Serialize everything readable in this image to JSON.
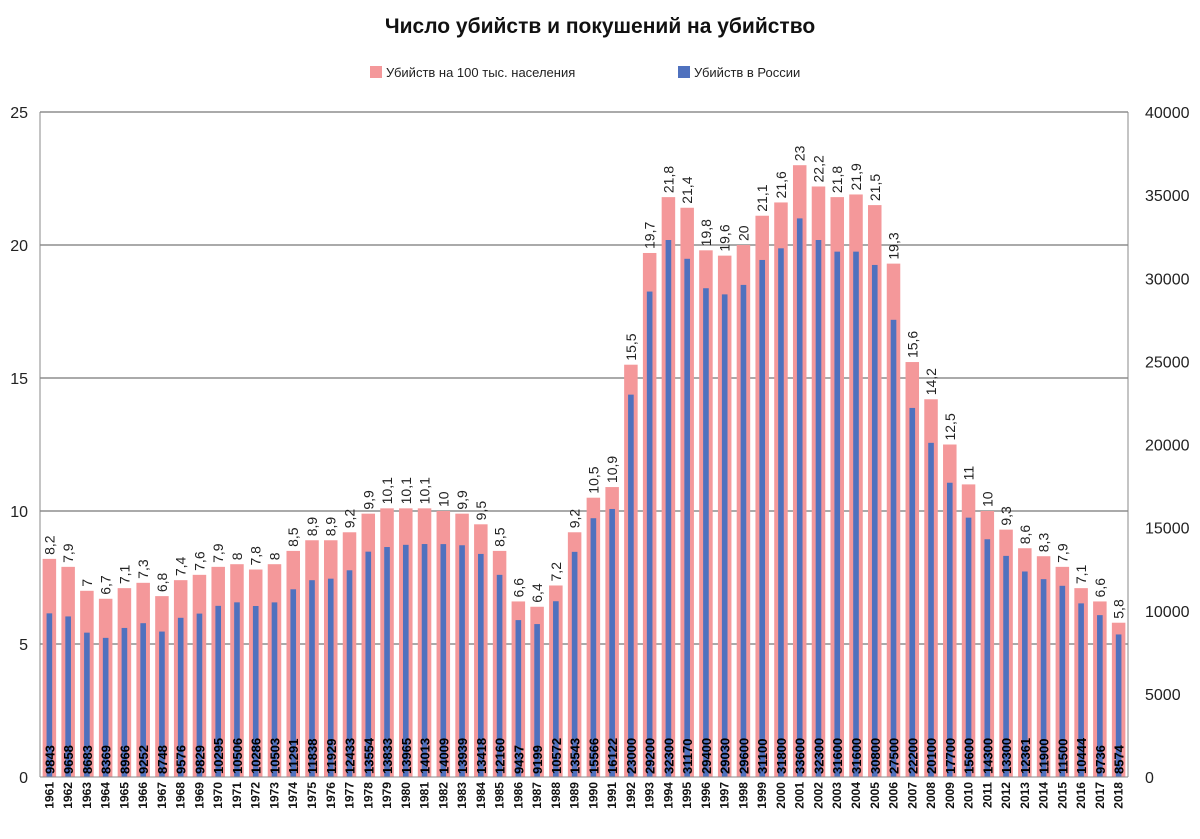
{
  "chart_data": {
    "type": "bar",
    "title": "Число убийств и покушений на убийство",
    "legend": [
      {
        "name": "Убийств на 100 тыс. населения",
        "color": "#f4989a"
      },
      {
        "name": "Убийств в России",
        "color": "#4f71be"
      }
    ],
    "categories": [
      "1961",
      "1962",
      "1963",
      "1964",
      "1965",
      "1966",
      "1967",
      "1968",
      "1969",
      "1970",
      "1971",
      "1972",
      "1973",
      "1974",
      "1975",
      "1976",
      "1977",
      "1978",
      "1979",
      "1980",
      "1981",
      "1982",
      "1983",
      "1984",
      "1985",
      "1986",
      "1987",
      "1988",
      "1989",
      "1990",
      "1991",
      "1992",
      "1993",
      "1994",
      "1995",
      "1996",
      "1997",
      "1998",
      "1999",
      "2000",
      "2001",
      "2002",
      "2003",
      "2004",
      "2005",
      "2006",
      "2007",
      "2008",
      "2009",
      "2010",
      "2011",
      "2012",
      "2013",
      "2014",
      "2015",
      "2016",
      "2017",
      "2018"
    ],
    "series": [
      {
        "name": "Убийств на 100 тыс. населения",
        "axis": "left",
        "values": [
          8.2,
          7.9,
          7,
          6.7,
          7.1,
          7.3,
          6.8,
          7.4,
          7.6,
          7.9,
          8,
          7.8,
          8,
          8.5,
          8.9,
          8.9,
          9.2,
          9.9,
          10.1,
          10.1,
          10.1,
          10,
          9.9,
          9.5,
          8.5,
          6.6,
          6.4,
          7.2,
          9.2,
          10.5,
          10.9,
          15.5,
          19.7,
          21.8,
          21.4,
          19.8,
          19.6,
          20,
          21.1,
          21.6,
          23,
          22.2,
          21.8,
          21.9,
          21.5,
          19.3,
          15.6,
          14.2,
          12.5,
          11,
          10,
          9.3,
          8.6,
          8.3,
          7.9,
          7.1,
          6.6,
          5.8
        ],
        "labels": [
          "8,2",
          "7,9",
          "7",
          "6,7",
          "7,1",
          "7,3",
          "6,8",
          "7,4",
          "7,6",
          "7,9",
          "8",
          "7,8",
          "8",
          "8,5",
          "8,9",
          "8,9",
          "9,2",
          "9,9",
          "10,1",
          "10,1",
          "10,1",
          "10",
          "9,9",
          "9,5",
          "8,5",
          "6,6",
          "6,4",
          "7,2",
          "9,2",
          "10,5",
          "10,9",
          "15,5",
          "19,7",
          "21,8",
          "21,4",
          "19,8",
          "19,6",
          "20",
          "21,1",
          "21,6",
          "23",
          "22,2",
          "21,8",
          "21,9",
          "21,5",
          "19,3",
          "15,6",
          "14,2",
          "12,5",
          "11",
          "10",
          "9,3",
          "8,6",
          "8,3",
          "7,9",
          "7,1",
          "6,6",
          "5,8"
        ]
      },
      {
        "name": "Убийств в России",
        "axis": "right",
        "values": [
          9843,
          9658,
          8683,
          8369,
          8966,
          9252,
          8748,
          9576,
          9829,
          10295,
          10506,
          10286,
          10503,
          11291,
          11838,
          11929,
          12433,
          13554,
          13833,
          13965,
          14013,
          14009,
          13939,
          13418,
          12160,
          9437,
          9199,
          10572,
          13543,
          15566,
          16122,
          23000,
          29200,
          32300,
          31170,
          29400,
          29030,
          29600,
          31100,
          31800,
          33600,
          32300,
          31600,
          31600,
          30800,
          27500,
          22200,
          20100,
          17700,
          15600,
          14300,
          13300,
          12361,
          11900,
          11500,
          10444,
          9736,
          8574
        ]
      }
    ],
    "y_left": {
      "min": 0,
      "max": 25,
      "ticks": [
        "0",
        "5",
        "10",
        "15",
        "20",
        "25"
      ]
    },
    "y_right": {
      "min": 0,
      "max": 40000,
      "ticks": [
        "0",
        "5000",
        "10000",
        "15000",
        "20000",
        "25000",
        "30000",
        "35000",
        "40000"
      ]
    },
    "gridlines": "horizontal, every 5 units on left axis",
    "legend_position": "top-center"
  }
}
